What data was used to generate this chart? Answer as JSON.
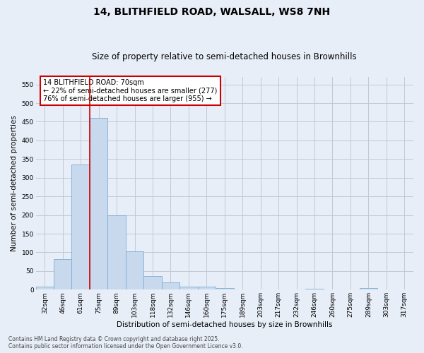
{
  "title_line1": "14, BLITHFIELD ROAD, WALSALL, WS8 7NH",
  "title_line2": "Size of property relative to semi-detached houses in Brownhills",
  "xlabel": "Distribution of semi-detached houses by size in Brownhills",
  "ylabel": "Number of semi-detached properties",
  "categories": [
    "32sqm",
    "46sqm",
    "61sqm",
    "75sqm",
    "89sqm",
    "103sqm",
    "118sqm",
    "132sqm",
    "146sqm",
    "160sqm",
    "175sqm",
    "189sqm",
    "203sqm",
    "217sqm",
    "232sqm",
    "246sqm",
    "260sqm",
    "275sqm",
    "289sqm",
    "303sqm",
    "317sqm"
  ],
  "values": [
    8,
    82,
    335,
    460,
    200,
    102,
    37,
    20,
    9,
    8,
    5,
    1,
    0,
    0,
    0,
    3,
    0,
    0,
    5,
    0,
    0
  ],
  "bar_color": "#c9d9ed",
  "bar_edge_color": "#7aadd4",
  "grid_color": "#c0c8d8",
  "background_color": "#e8eef8",
  "annotation_box_color": "#cc0000",
  "property_line_color": "#cc0000",
  "annotation_text_line1": "14 BLITHFIELD ROAD: 70sqm",
  "annotation_text_line2": "← 22% of semi-detached houses are smaller (277)",
  "annotation_text_line3": "76% of semi-detached houses are larger (955) →",
  "ylim": [
    0,
    570
  ],
  "yticks": [
    0,
    50,
    100,
    150,
    200,
    250,
    300,
    350,
    400,
    450,
    500,
    550
  ],
  "footer_line1": "Contains HM Land Registry data © Crown copyright and database right 2025.",
  "footer_line2": "Contains public sector information licensed under the Open Government Licence v3.0.",
  "title_fontsize": 10,
  "subtitle_fontsize": 8.5,
  "label_fontsize": 7.5,
  "tick_fontsize": 6.5,
  "annotation_fontsize": 7,
  "footer_fontsize": 5.5
}
